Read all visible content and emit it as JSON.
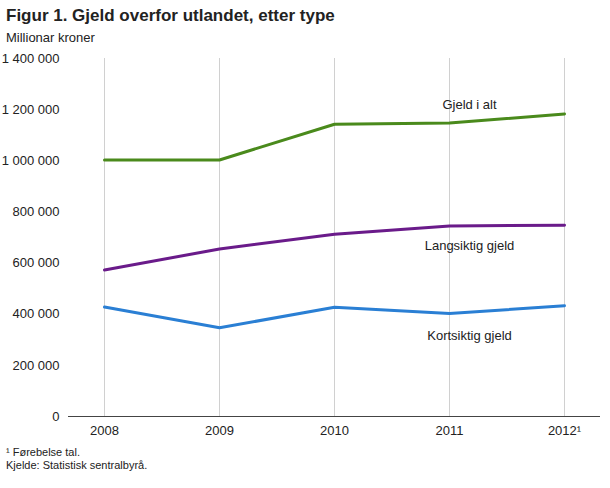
{
  "chart_data": {
    "type": "line",
    "title": "Figur 1. Gjeld overfor utlandet, etter type",
    "y_label": "Millionar kroner",
    "categories": [
      "2008",
      "2009",
      "2010",
      "2011",
      "2012¹"
    ],
    "series": [
      {
        "name": "Gjeld i alt",
        "color": "#4a8a1c",
        "values": [
          1003000,
          1003000,
          1143000,
          1148000,
          1183000
        ]
      },
      {
        "name": "Langsiktig gjeld",
        "color": "#6a1b8a",
        "values": [
          573000,
          655000,
          713000,
          745000,
          748000
        ]
      },
      {
        "name": "Kortsiktig gjeld",
        "color": "#2a7fd4",
        "values": [
          428000,
          347000,
          427000,
          403000,
          433000
        ]
      }
    ],
    "ylim": [
      0,
      1400000
    ],
    "yticks": [
      0,
      {
        "value": 200000,
        "label": "200 000"
      },
      {
        "value": 400000,
        "label": "400 000"
      },
      {
        "value": 600000,
        "label": "600 000"
      },
      {
        "value": 800000,
        "label": "800 000"
      },
      {
        "value": 1000000,
        "label": "1 000 000"
      },
      {
        "value": 1200000,
        "label": "1 200 000"
      },
      {
        "value": 1400000,
        "label": "1 400 000"
      }
    ],
    "grid": "x",
    "footnote": "¹ Førebelse tal.",
    "source": "Kjelde: Statistisk sentralbyrå."
  }
}
